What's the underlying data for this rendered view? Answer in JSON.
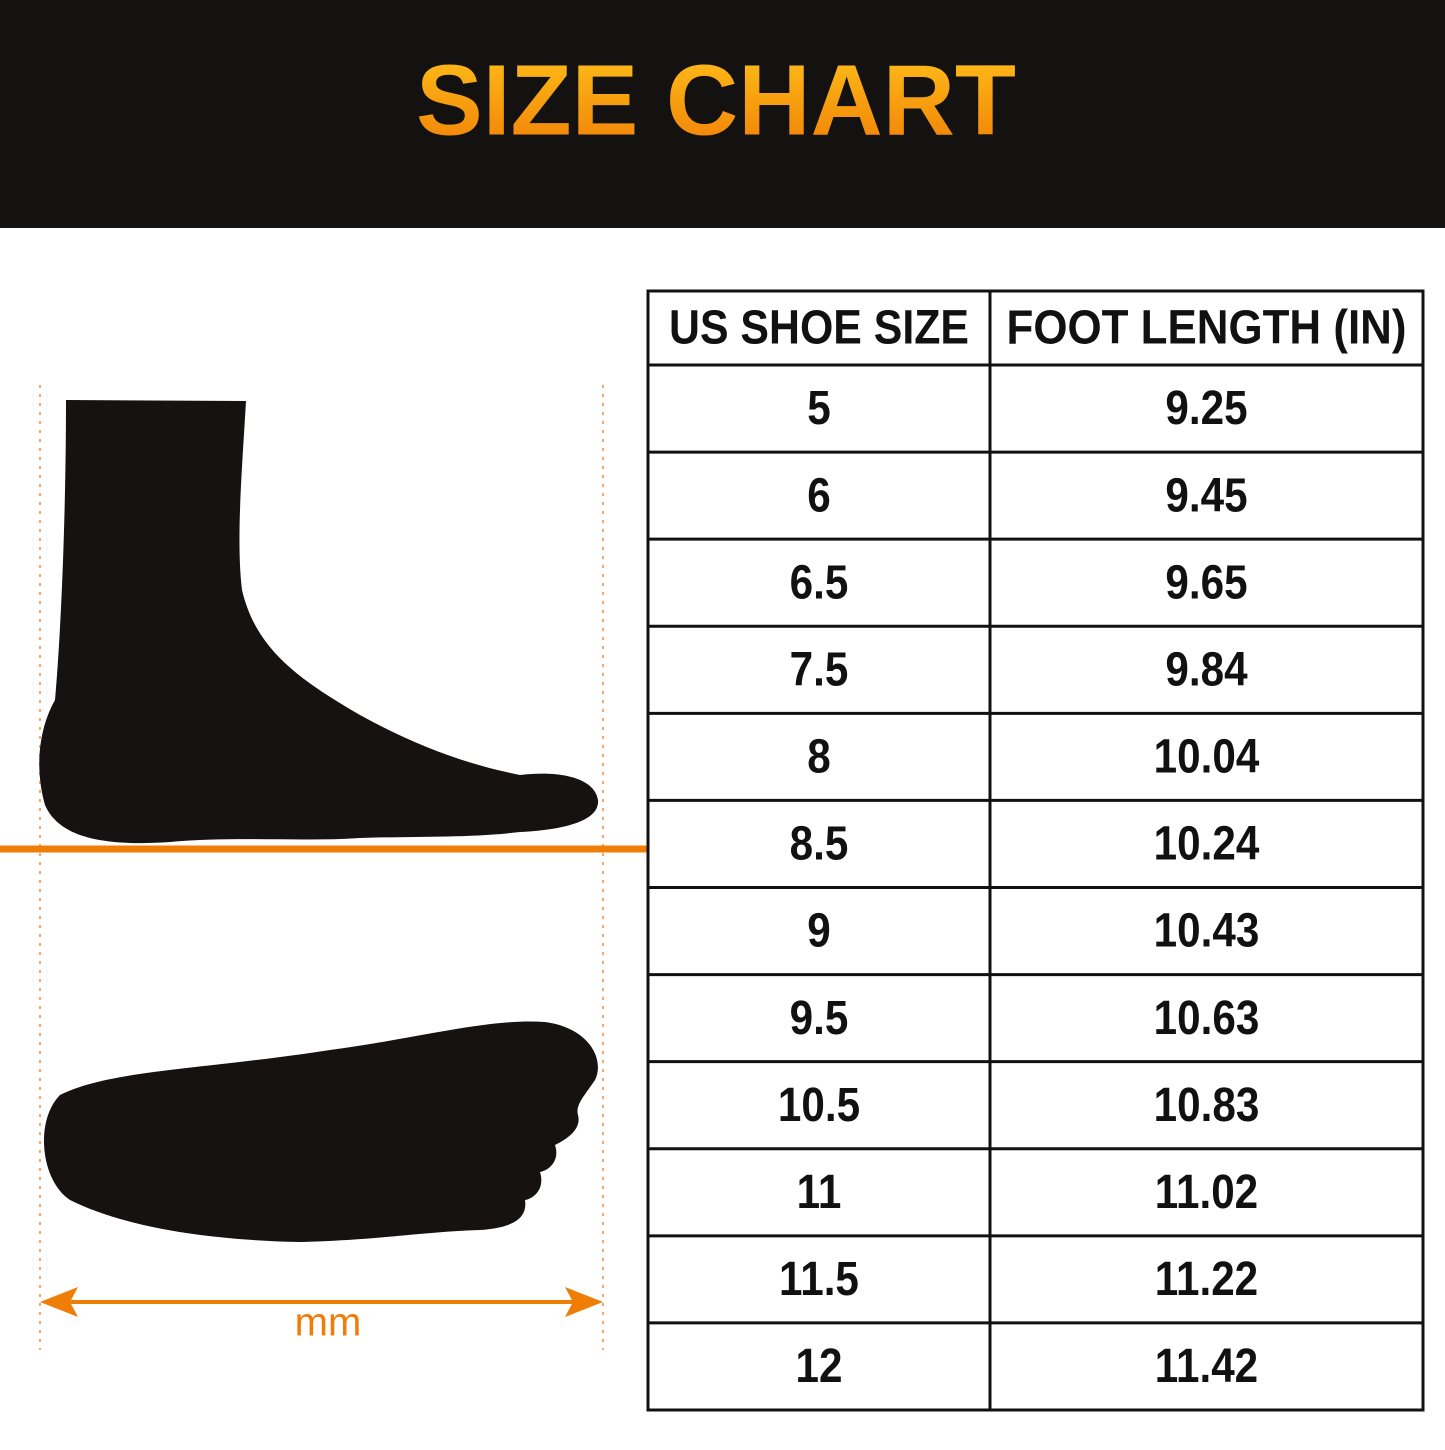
{
  "header": {
    "title": "SIZE CHART"
  },
  "illustration": {
    "label": "mm"
  },
  "table": {
    "headers": [
      "US SHOE SIZE",
      "FOOT LENGTH (IN)"
    ],
    "rows": [
      [
        "5",
        "9.25"
      ],
      [
        "6",
        "9.45"
      ],
      [
        "6.5",
        "9.65"
      ],
      [
        "7.5",
        "9.84"
      ],
      [
        "8",
        "10.04"
      ],
      [
        "8.5",
        "10.24"
      ],
      [
        "9",
        "10.43"
      ],
      [
        "9.5",
        "10.63"
      ],
      [
        "10.5",
        "10.83"
      ],
      [
        "11",
        "11.02"
      ],
      [
        "11.5",
        "11.22"
      ],
      [
        "12",
        "11.42"
      ]
    ]
  }
}
